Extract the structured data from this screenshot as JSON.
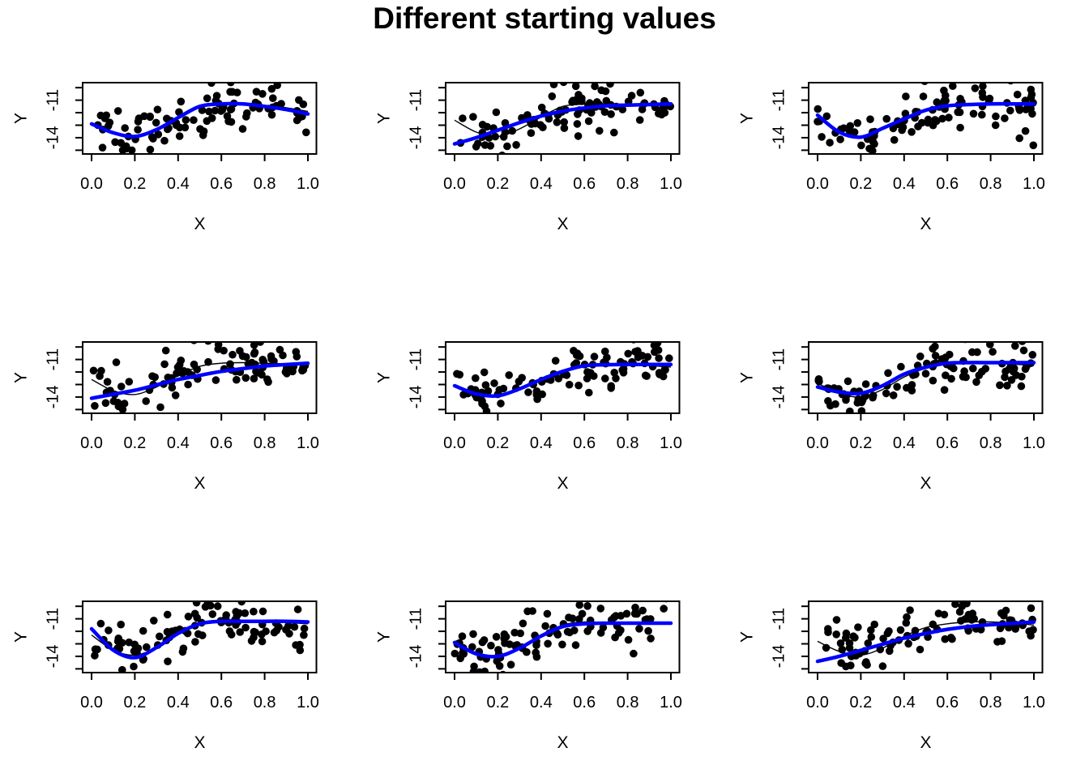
{
  "chart_data": {
    "type": "scatter",
    "title": "Different starting values",
    "grid": [
      3,
      3
    ],
    "x_axis": {
      "label": "X",
      "range": [
        -0.04,
        1.04
      ],
      "ticks": [
        0.0,
        0.2,
        0.4,
        0.6,
        0.8,
        1.0
      ],
      "tick_labels": [
        "0.0",
        "0.2",
        "0.4",
        "0.6",
        "0.8",
        "1.0"
      ]
    },
    "y_axis": {
      "label": "Y",
      "range": [
        -15.3,
        -9.6
      ],
      "ticks": [
        -15,
        -14,
        -13,
        -12,
        -11,
        -10
      ],
      "labeled_ticks": [
        {
          "value": -14,
          "label": "-14"
        },
        {
          "value": -11,
          "label": "-11"
        }
      ]
    },
    "legend": "none",
    "grid_lines": false,
    "curve_x": [
      0,
      0.1,
      0.2,
      0.3,
      0.4,
      0.5,
      0.6,
      0.7,
      0.8,
      0.9,
      1.0
    ],
    "colors": {
      "fit_curve": "#0000FF",
      "reference_curve": "#000000",
      "points": "#000000",
      "box": "#000000"
    },
    "style": {
      "point_radius": 4.8,
      "fit_line_width": 4.5,
      "reference_line_width": 1.4,
      "box_line_width": 2
    },
    "panels": [
      {
        "name": "row1-col1",
        "fit_curve": [
          -12.9,
          -13.6,
          -13.9,
          -13.35,
          -12.4,
          -11.5,
          -11.3,
          -11.3,
          -11.5,
          -11.75,
          -12.1
        ],
        "reference_curve": [
          -12.9,
          -13.6,
          -13.9,
          -13.35,
          -12.4,
          -11.5,
          -11.28,
          -11.25,
          -11.4,
          -11.6,
          -11.9
        ],
        "scatter": {
          "n": 100,
          "seed": 101,
          "noise_sd": 1.0
        }
      },
      {
        "name": "row1-col2",
        "fit_curve": [
          -14.5,
          -14.0,
          -13.4,
          -12.8,
          -12.27,
          -11.88,
          -11.62,
          -11.45,
          -11.4,
          -11.35,
          -11.3
        ],
        "reference_curve": [
          -12.6,
          -13.55,
          -13.9,
          -13.3,
          -12.35,
          -11.5,
          -11.32,
          -11.3,
          -11.33,
          -11.35,
          -11.3
        ],
        "scatter": {
          "n": 100,
          "seed": 202,
          "noise_sd": 1.0
        }
      },
      {
        "name": "row1-col3",
        "fit_curve": [
          -12.2,
          -13.55,
          -13.95,
          -13.25,
          -12.5,
          -11.8,
          -11.45,
          -11.35,
          -11.3,
          -11.3,
          -11.3
        ],
        "reference_curve": [
          -12.3,
          -13.5,
          -13.9,
          -13.3,
          -12.55,
          -11.8,
          -11.4,
          -11.28,
          -11.25,
          -11.28,
          -11.3
        ],
        "scatter": {
          "n": 100,
          "seed": 303,
          "noise_sd": 1.0
        }
      },
      {
        "name": "row2-col1",
        "fit_curve": [
          -14.1,
          -13.78,
          -13.46,
          -13.03,
          -12.6,
          -12.27,
          -11.95,
          -11.73,
          -11.52,
          -11.41,
          -11.3
        ],
        "reference_curve": [
          -12.6,
          -13.5,
          -13.8,
          -13.2,
          -12.3,
          -11.55,
          -11.3,
          -11.25,
          -11.3,
          -11.35,
          -11.4
        ],
        "scatter": {
          "n": 100,
          "seed": 404,
          "noise_sd": 1.0
        }
      },
      {
        "name": "row2-col2",
        "fit_curve": [
          -13.1,
          -13.75,
          -13.9,
          -13.35,
          -12.6,
          -11.95,
          -11.5,
          -11.42,
          -11.4,
          -11.4,
          -11.4
        ],
        "reference_curve": [
          -13.0,
          -13.7,
          -13.9,
          -13.4,
          -12.65,
          -11.95,
          -11.5,
          -11.45,
          -11.45,
          -11.5,
          -11.6
        ],
        "scatter": {
          "n": 100,
          "seed": 505,
          "noise_sd": 1.0
        }
      },
      {
        "name": "row2-col3",
        "fit_curve": [
          -13.2,
          -13.6,
          -13.7,
          -13.1,
          -12.17,
          -11.62,
          -11.3,
          -11.25,
          -11.25,
          -11.25,
          -11.25
        ],
        "reference_curve": [
          -12.9,
          -13.7,
          -14.0,
          -13.4,
          -12.4,
          -11.7,
          -11.35,
          -11.28,
          -11.3,
          -11.38,
          -11.45
        ],
        "scatter": {
          "n": 100,
          "seed": 606,
          "noise_sd": 1.0
        }
      },
      {
        "name": "row3-col1",
        "fit_curve": [
          -11.8,
          -13.5,
          -14.1,
          -13.3,
          -12.17,
          -11.4,
          -11.2,
          -11.2,
          -11.2,
          -11.2,
          -11.25
        ],
        "reference_curve": [
          -12.3,
          -13.5,
          -13.9,
          -13.3,
          -12.2,
          -11.45,
          -11.22,
          -11.2,
          -11.22,
          -11.3,
          -11.4
        ],
        "scatter": {
          "n": 100,
          "seed": 707,
          "noise_sd": 1.0
        }
      },
      {
        "name": "row3-col2",
        "fit_curve": [
          -12.9,
          -13.8,
          -14.0,
          -13.35,
          -12.38,
          -11.62,
          -11.4,
          -11.35,
          -11.35,
          -11.35,
          -11.35
        ],
        "reference_curve": [
          -12.9,
          -13.75,
          -13.95,
          -13.35,
          -12.35,
          -11.5,
          -11.25,
          -11.3,
          -11.35,
          -11.4,
          -11.35
        ],
        "scatter": {
          "n": 100,
          "seed": 808,
          "noise_sd": 1.0
        }
      },
      {
        "name": "row3-col3",
        "fit_curve": [
          -14.4,
          -14.0,
          -13.52,
          -13.03,
          -12.55,
          -12.17,
          -11.84,
          -11.62,
          -11.47,
          -11.36,
          -11.26
        ],
        "reference_curve": [
          -12.8,
          -13.6,
          -13.9,
          -13.35,
          -12.4,
          -11.7,
          -11.4,
          -11.25,
          -11.25,
          -11.35,
          -11.5
        ],
        "scatter": {
          "n": 100,
          "seed": 909,
          "noise_sd": 1.0
        }
      }
    ]
  }
}
